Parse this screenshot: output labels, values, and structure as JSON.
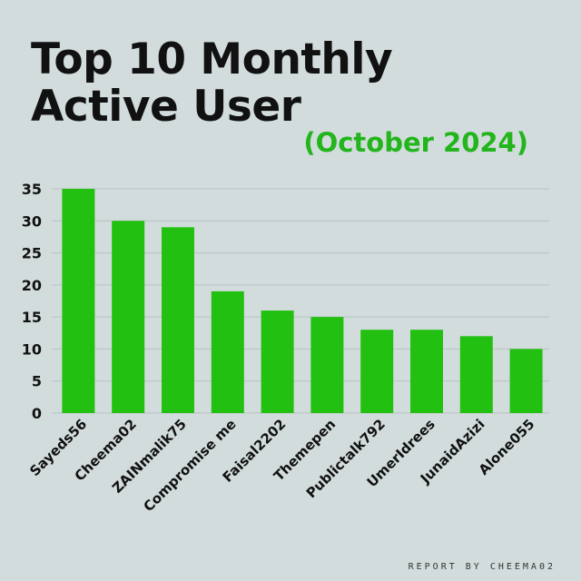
{
  "header": {
    "title_line1": "Top 10 Monthly",
    "title_line2": "Active User",
    "subtitle": "(October 2024)"
  },
  "footer": {
    "credit": "REPORT BY CHEEMA02"
  },
  "colors": {
    "bar": "#22c010",
    "subtitle": "#22b51c",
    "background": "#d3dcdd",
    "grid": "#b8c2c3"
  },
  "chart_data": {
    "type": "bar",
    "title": "Top 10 Monthly Active User",
    "subtitle": "(October 2024)",
    "categories": [
      "Sayeds56",
      "Cheema02",
      "ZAINmalik75",
      "Compromise me",
      "Faisal2202",
      "Themepen",
      "Publictalk792",
      "UmerIdrees",
      "JunaidAzizi",
      "Alone055"
    ],
    "values": [
      35,
      30,
      29,
      19,
      16,
      15,
      13,
      13,
      12,
      10
    ],
    "yticks": [
      0,
      5,
      10,
      15,
      20,
      25,
      30,
      35
    ],
    "ylim": [
      0,
      35
    ],
    "xlabel": "",
    "ylabel": "",
    "grid": true,
    "legend": "none"
  }
}
